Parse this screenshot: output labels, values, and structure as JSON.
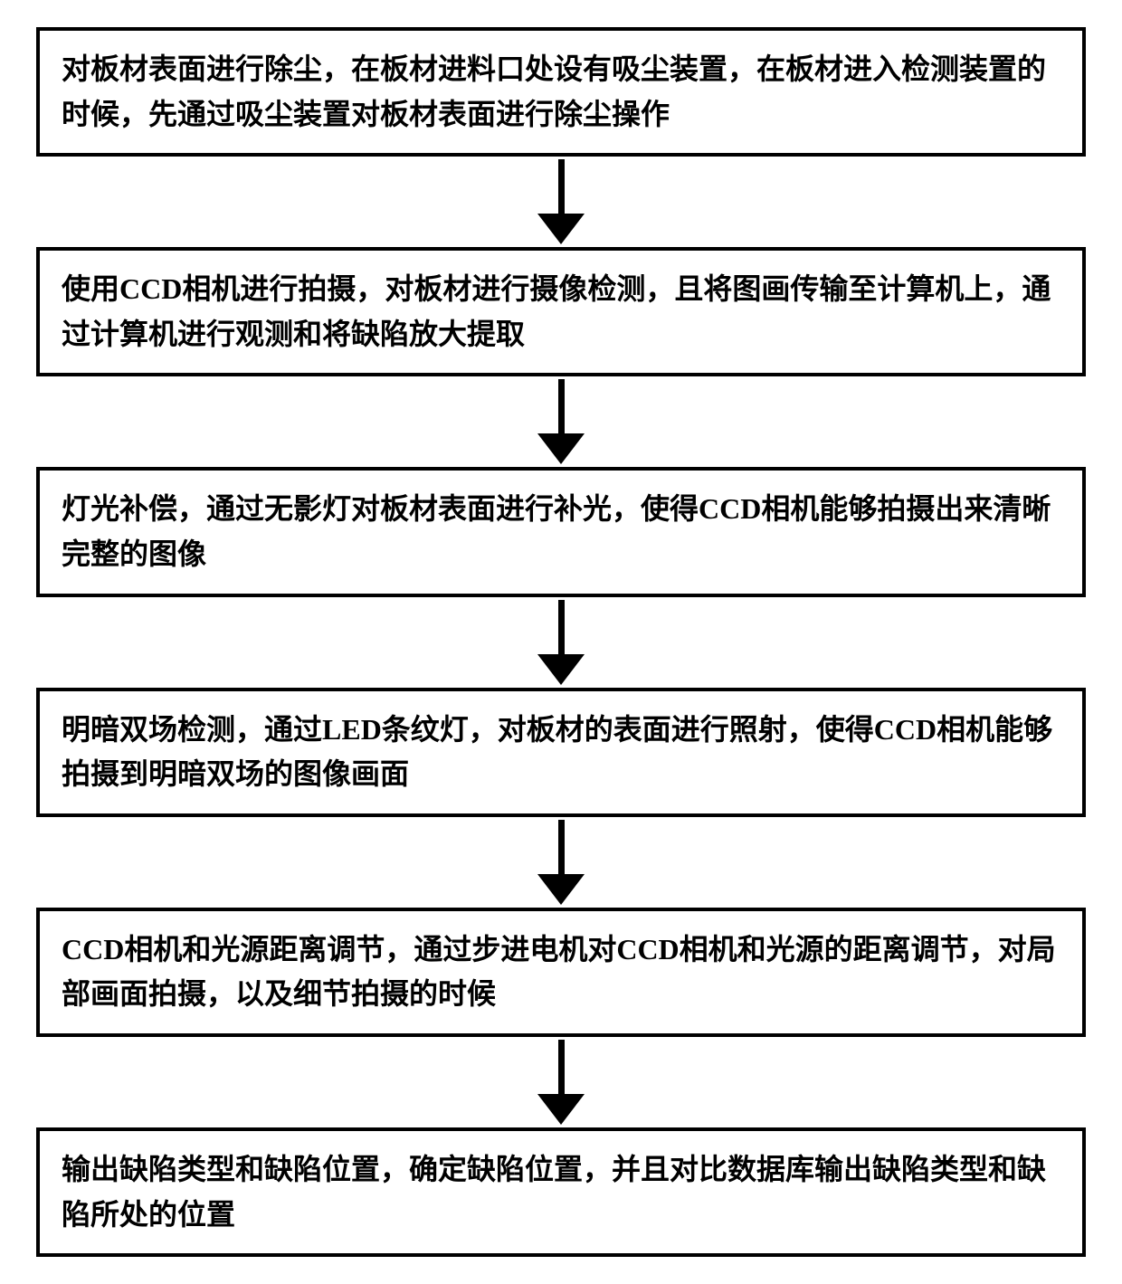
{
  "flowchart": {
    "background_color": "#ffffff",
    "border_color": "#000000",
    "border_width": 4,
    "arrow_color": "#000000",
    "arrow_line_width": 7,
    "arrow_head_width": 52,
    "arrow_head_height": 34,
    "box_font_size": 32,
    "box_font_weight": "bold",
    "steps": [
      {
        "text": "对板材表面进行除尘，在板材进料口处设有吸尘装置，在板材进入检测装置的时候，先通过吸尘装置对板材表面进行除尘操作"
      },
      {
        "text": "使用CCD相机进行拍摄，对板材进行摄像检测，且将图画传输至计算机上，通过计算机进行观测和将缺陷放大提取"
      },
      {
        "text": "灯光补偿，通过无影灯对板材表面进行补光，使得CCD相机能够拍摄出来清晰完整的图像"
      },
      {
        "text": "明暗双场检测，通过LED条纹灯，对板材的表面进行照射，使得CCD相机能够拍摄到明暗双场的图像画面"
      },
      {
        "text": "CCD相机和光源距离调节，通过步进电机对CCD相机和光源的距离调节，对局部画面拍摄，以及细节拍摄的时候"
      },
      {
        "text": "输出缺陷类型和缺陷位置，确定缺陷位置，并且对比数据库输出缺陷类型和缺陷所处的位置"
      }
    ]
  }
}
